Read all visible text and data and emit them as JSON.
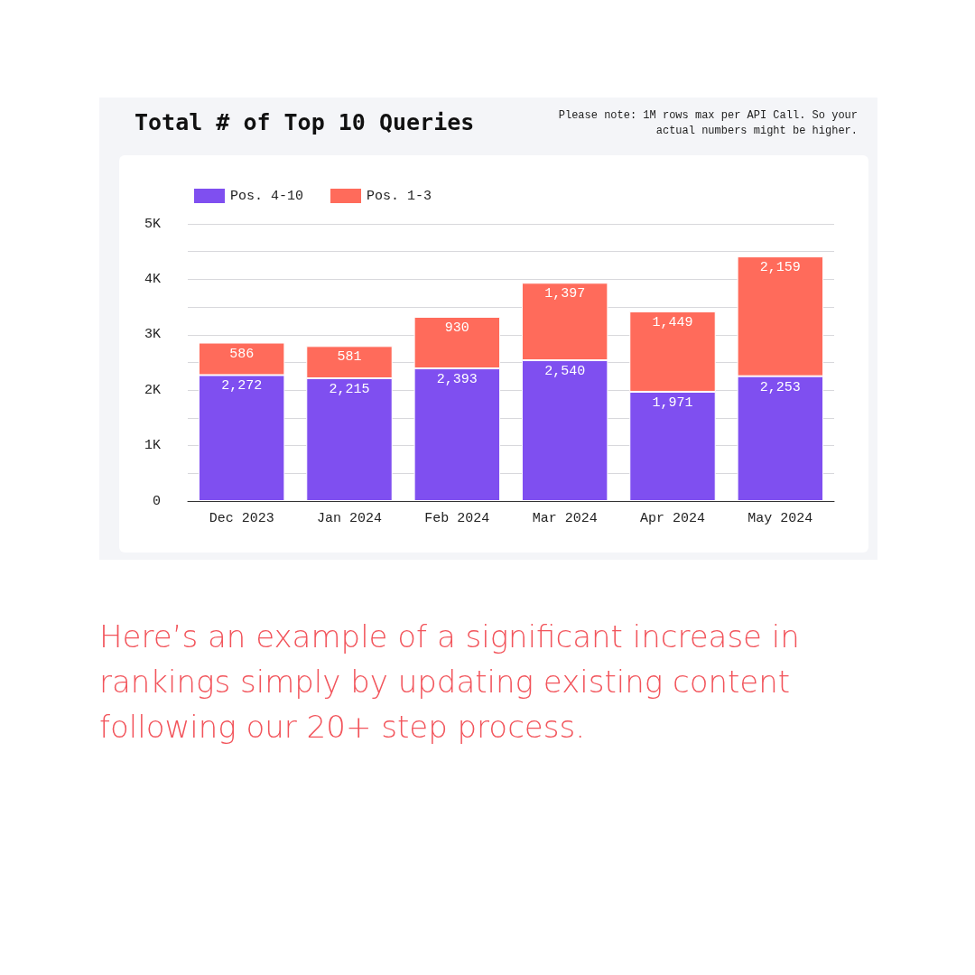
{
  "chart_data": {
    "type": "bar",
    "title": "Total # of Top 10 Queries",
    "categories": [
      "Dec 2023",
      "Jan 2024",
      "Feb 2024",
      "Mar 2024",
      "Apr 2024",
      "May 2024"
    ],
    "series": [
      {
        "name": "Pos. 4-10",
        "color": "#7f4ff0",
        "values": [
          2272,
          2215,
          2393,
          2540,
          1971,
          2253
        ],
        "value_labels": [
          "2,272",
          "2,215",
          "2,393",
          "2,540",
          "1,971",
          "2,253"
        ]
      },
      {
        "name": "Pos. 1-3",
        "color": "#ff6b5b",
        "values": [
          586,
          581,
          930,
          1397,
          1449,
          2159
        ],
        "value_labels": [
          "586",
          "581",
          "930",
          "1,397",
          "1,449",
          "2,159"
        ]
      }
    ],
    "stacked": true,
    "ylim": [
      0,
      5000
    ],
    "yticks": [
      0,
      {
        "value": 500,
        "label": null
      },
      {
        "value": 1000,
        "label": "1K"
      },
      {
        "value": 1500,
        "label": null
      },
      {
        "value": 2000,
        "label": "2K"
      },
      {
        "value": 2500,
        "label": null
      },
      {
        "value": 3000,
        "label": "3K"
      },
      {
        "value": 3500,
        "label": null
      },
      {
        "value": 4000,
        "label": "4K"
      },
      {
        "value": 4500,
        "label": null
      },
      {
        "value": 5000,
        "label": "5K"
      }
    ],
    "grid": "y",
    "legend": "top left",
    "annotations": [
      "Please note: 1M rows max per API Call. So your actual numbers might be higher.",
      "Here’s an example of a significant increase in rankings simply by updating existing content following our 20+ step process."
    ]
  }
}
